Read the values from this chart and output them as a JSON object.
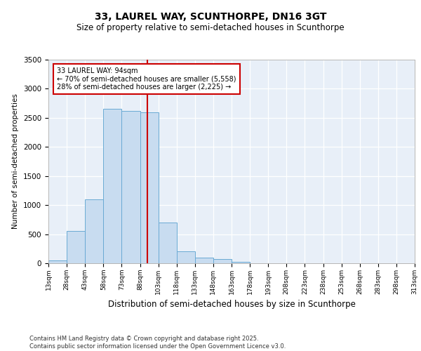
{
  "title1": "33, LAUREL WAY, SCUNTHORPE, DN16 3GT",
  "title2": "Size of property relative to semi-detached houses in Scunthorpe",
  "xlabel": "Distribution of semi-detached houses by size in Scunthorpe",
  "ylabel": "Number of semi-detached properties",
  "bin_labels": [
    "13sqm",
    "28sqm",
    "43sqm",
    "58sqm",
    "73sqm",
    "88sqm",
    "103sqm",
    "118sqm",
    "133sqm",
    "148sqm",
    "163sqm",
    "178sqm",
    "193sqm",
    "208sqm",
    "223sqm",
    "238sqm",
    "253sqm",
    "268sqm",
    "283sqm",
    "298sqm",
    "313sqm"
  ],
  "bin_starts": [
    13,
    28,
    43,
    58,
    73,
    88,
    103,
    118,
    133,
    148,
    163,
    178,
    193,
    208,
    223,
    238,
    253,
    268,
    283,
    298
  ],
  "bin_width": 15,
  "bar_values": [
    50,
    550,
    1100,
    2650,
    2620,
    2590,
    700,
    210,
    100,
    70,
    20,
    0,
    0,
    0,
    0,
    0,
    0,
    0,
    0,
    0
  ],
  "bar_color": "#c8dcf0",
  "bar_edge_color": "#6aaad4",
  "property_size": 94,
  "vline_color": "#cc0000",
  "annotation_text": "33 LAUREL WAY: 94sqm\n← 70% of semi-detached houses are smaller (5,558)\n28% of semi-detached houses are larger (2,225) →",
  "annotation_box_color": "#ffffff",
  "annotation_box_edge": "#cc0000",
  "ylim": [
    0,
    3500
  ],
  "yticks": [
    0,
    500,
    1000,
    1500,
    2000,
    2500,
    3000,
    3500
  ],
  "background_color": "#e8eff8",
  "grid_color": "#ffffff",
  "footer": "Contains HM Land Registry data © Crown copyright and database right 2025.\nContains public sector information licensed under the Open Government Licence v3.0."
}
